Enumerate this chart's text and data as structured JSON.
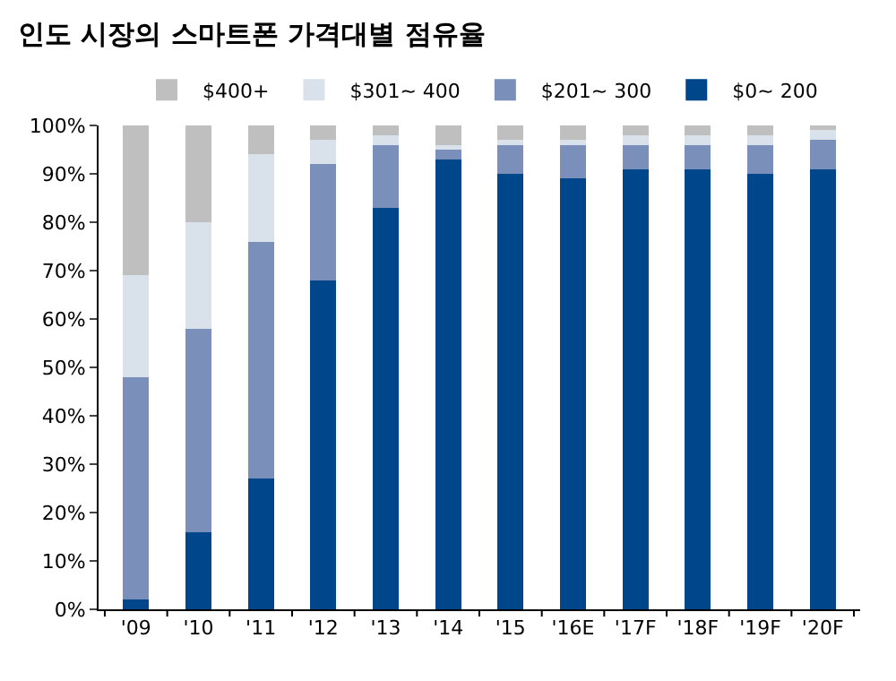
{
  "chart_data": {
    "type": "bar",
    "title": "인도 시장의 스마트폰 가격대별 점유율",
    "categories": [
      "'09",
      "'10",
      "'11",
      "'12",
      "'13",
      "'14",
      "'15",
      "'16E",
      "'17F",
      "'18F",
      "'19F",
      "'20F"
    ],
    "stacked": true,
    "series": [
      {
        "name": "$0~ 200",
        "color": "#00468b",
        "values": [
          2,
          16,
          27,
          68,
          83,
          93,
          90,
          89,
          91,
          91,
          90,
          91
        ]
      },
      {
        "name": "$201~ 300",
        "color": "#7b8fbb",
        "values": [
          46,
          42,
          49,
          24,
          13,
          2,
          6,
          7,
          5,
          5,
          6,
          6
        ]
      },
      {
        "name": "$301~ 400",
        "color": "#d9e1ea",
        "values": [
          21,
          22,
          18,
          5,
          2,
          1,
          1,
          1,
          2,
          2,
          2,
          2
        ]
      },
      {
        "name": "$400+",
        "color": "#bfbfbf",
        "values": [
          31,
          20,
          6,
          3,
          2,
          4,
          3,
          3,
          2,
          2,
          2,
          1
        ]
      }
    ],
    "ylim": [
      0,
      100
    ],
    "yticks": [
      {
        "value": 0,
        "label": "0%"
      },
      {
        "value": 10,
        "label": "10%"
      },
      {
        "value": 20,
        "label": "20%"
      },
      {
        "value": 30,
        "label": "30%"
      },
      {
        "value": 40,
        "label": "40%"
      },
      {
        "value": 50,
        "label": "50%"
      },
      {
        "value": 60,
        "label": "60%"
      },
      {
        "value": 70,
        "label": "70%"
      },
      {
        "value": 80,
        "label": "80%"
      },
      {
        "value": 90,
        "label": "90%"
      },
      {
        "value": 100,
        "label": "100%"
      }
    ],
    "grid": false,
    "legend": "top"
  }
}
